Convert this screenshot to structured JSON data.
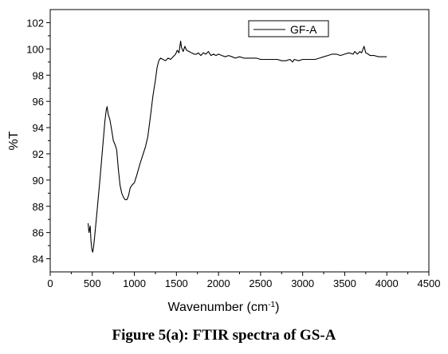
{
  "caption": "Figure 5(a): FTIR spectra of GS-A",
  "chart_data": {
    "type": "line",
    "title": "",
    "xlabel": "Wavenumber (cm",
    "xlabel_superscript": "-1",
    "xlabel_suffix": ")",
    "ylabel": "%T",
    "xlim": [
      0,
      4500
    ],
    "ylim": [
      83,
      103
    ],
    "x_ticks": [
      0,
      500,
      1000,
      1500,
      2000,
      2500,
      3000,
      3500,
      4000,
      4500
    ],
    "y_ticks": [
      84,
      86,
      88,
      90,
      92,
      94,
      96,
      98,
      100,
      102
    ],
    "legend_position": "top-center",
    "series": [
      {
        "name": "GF-A",
        "color": "#000000",
        "points": [
          [
            450,
            86.7
          ],
          [
            460,
            86.0
          ],
          [
            475,
            86.5
          ],
          [
            485,
            85.3
          ],
          [
            495,
            84.7
          ],
          [
            505,
            84.5
          ],
          [
            515,
            84.9
          ],
          [
            530,
            85.8
          ],
          [
            550,
            87.2
          ],
          [
            570,
            88.6
          ],
          [
            590,
            90.0
          ],
          [
            610,
            91.5
          ],
          [
            630,
            93.0
          ],
          [
            650,
            94.5
          ],
          [
            665,
            95.3
          ],
          [
            675,
            95.6
          ],
          [
            690,
            95.0
          ],
          [
            710,
            94.6
          ],
          [
            730,
            93.8
          ],
          [
            750,
            93.0
          ],
          [
            770,
            92.7
          ],
          [
            790,
            92.3
          ],
          [
            810,
            90.8
          ],
          [
            830,
            89.6
          ],
          [
            850,
            89.0
          ],
          [
            870,
            88.7
          ],
          [
            890,
            88.5
          ],
          [
            910,
            88.5
          ],
          [
            930,
            88.8
          ],
          [
            950,
            89.4
          ],
          [
            970,
            89.6
          ],
          [
            1000,
            89.8
          ],
          [
            1030,
            90.4
          ],
          [
            1070,
            91.3
          ],
          [
            1100,
            91.9
          ],
          [
            1130,
            92.5
          ],
          [
            1160,
            93.3
          ],
          [
            1190,
            94.8
          ],
          [
            1220,
            96.4
          ],
          [
            1250,
            97.6
          ],
          [
            1270,
            98.6
          ],
          [
            1290,
            99.1
          ],
          [
            1310,
            99.3
          ],
          [
            1340,
            99.2
          ],
          [
            1370,
            99.1
          ],
          [
            1400,
            99.3
          ],
          [
            1430,
            99.2
          ],
          [
            1460,
            99.4
          ],
          [
            1490,
            99.6
          ],
          [
            1510,
            99.9
          ],
          [
            1530,
            99.7
          ],
          [
            1550,
            100.6
          ],
          [
            1560,
            100.1
          ],
          [
            1580,
            99.8
          ],
          [
            1600,
            100.2
          ],
          [
            1620,
            99.9
          ],
          [
            1650,
            99.8
          ],
          [
            1680,
            99.7
          ],
          [
            1710,
            99.6
          ],
          [
            1740,
            99.6
          ],
          [
            1760,
            99.7
          ],
          [
            1790,
            99.5
          ],
          [
            1820,
            99.7
          ],
          [
            1850,
            99.6
          ],
          [
            1880,
            99.8
          ],
          [
            1910,
            99.5
          ],
          [
            1940,
            99.6
          ],
          [
            1970,
            99.5
          ],
          [
            2000,
            99.6
          ],
          [
            2040,
            99.5
          ],
          [
            2080,
            99.4
          ],
          [
            2120,
            99.5
          ],
          [
            2160,
            99.4
          ],
          [
            2200,
            99.3
          ],
          [
            2250,
            99.4
          ],
          [
            2300,
            99.3
          ],
          [
            2350,
            99.3
          ],
          [
            2400,
            99.3
          ],
          [
            2450,
            99.3
          ],
          [
            2500,
            99.2
          ],
          [
            2550,
            99.2
          ],
          [
            2600,
            99.2
          ],
          [
            2650,
            99.2
          ],
          [
            2700,
            99.2
          ],
          [
            2750,
            99.1
          ],
          [
            2800,
            99.1
          ],
          [
            2850,
            99.2
          ],
          [
            2880,
            99.0
          ],
          [
            2900,
            99.2
          ],
          [
            2950,
            99.1
          ],
          [
            3000,
            99.2
          ],
          [
            3050,
            99.2
          ],
          [
            3100,
            99.2
          ],
          [
            3150,
            99.2
          ],
          [
            3200,
            99.3
          ],
          [
            3250,
            99.4
          ],
          [
            3300,
            99.5
          ],
          [
            3350,
            99.6
          ],
          [
            3400,
            99.6
          ],
          [
            3450,
            99.5
          ],
          [
            3500,
            99.6
          ],
          [
            3550,
            99.7
          ],
          [
            3600,
            99.6
          ],
          [
            3620,
            99.8
          ],
          [
            3650,
            99.6
          ],
          [
            3680,
            99.8
          ],
          [
            3700,
            99.7
          ],
          [
            3730,
            100.2
          ],
          [
            3750,
            99.7
          ],
          [
            3780,
            99.6
          ],
          [
            3800,
            99.5
          ],
          [
            3850,
            99.5
          ],
          [
            3900,
            99.4
          ],
          [
            3950,
            99.4
          ],
          [
            4000,
            99.4
          ]
        ]
      }
    ]
  }
}
